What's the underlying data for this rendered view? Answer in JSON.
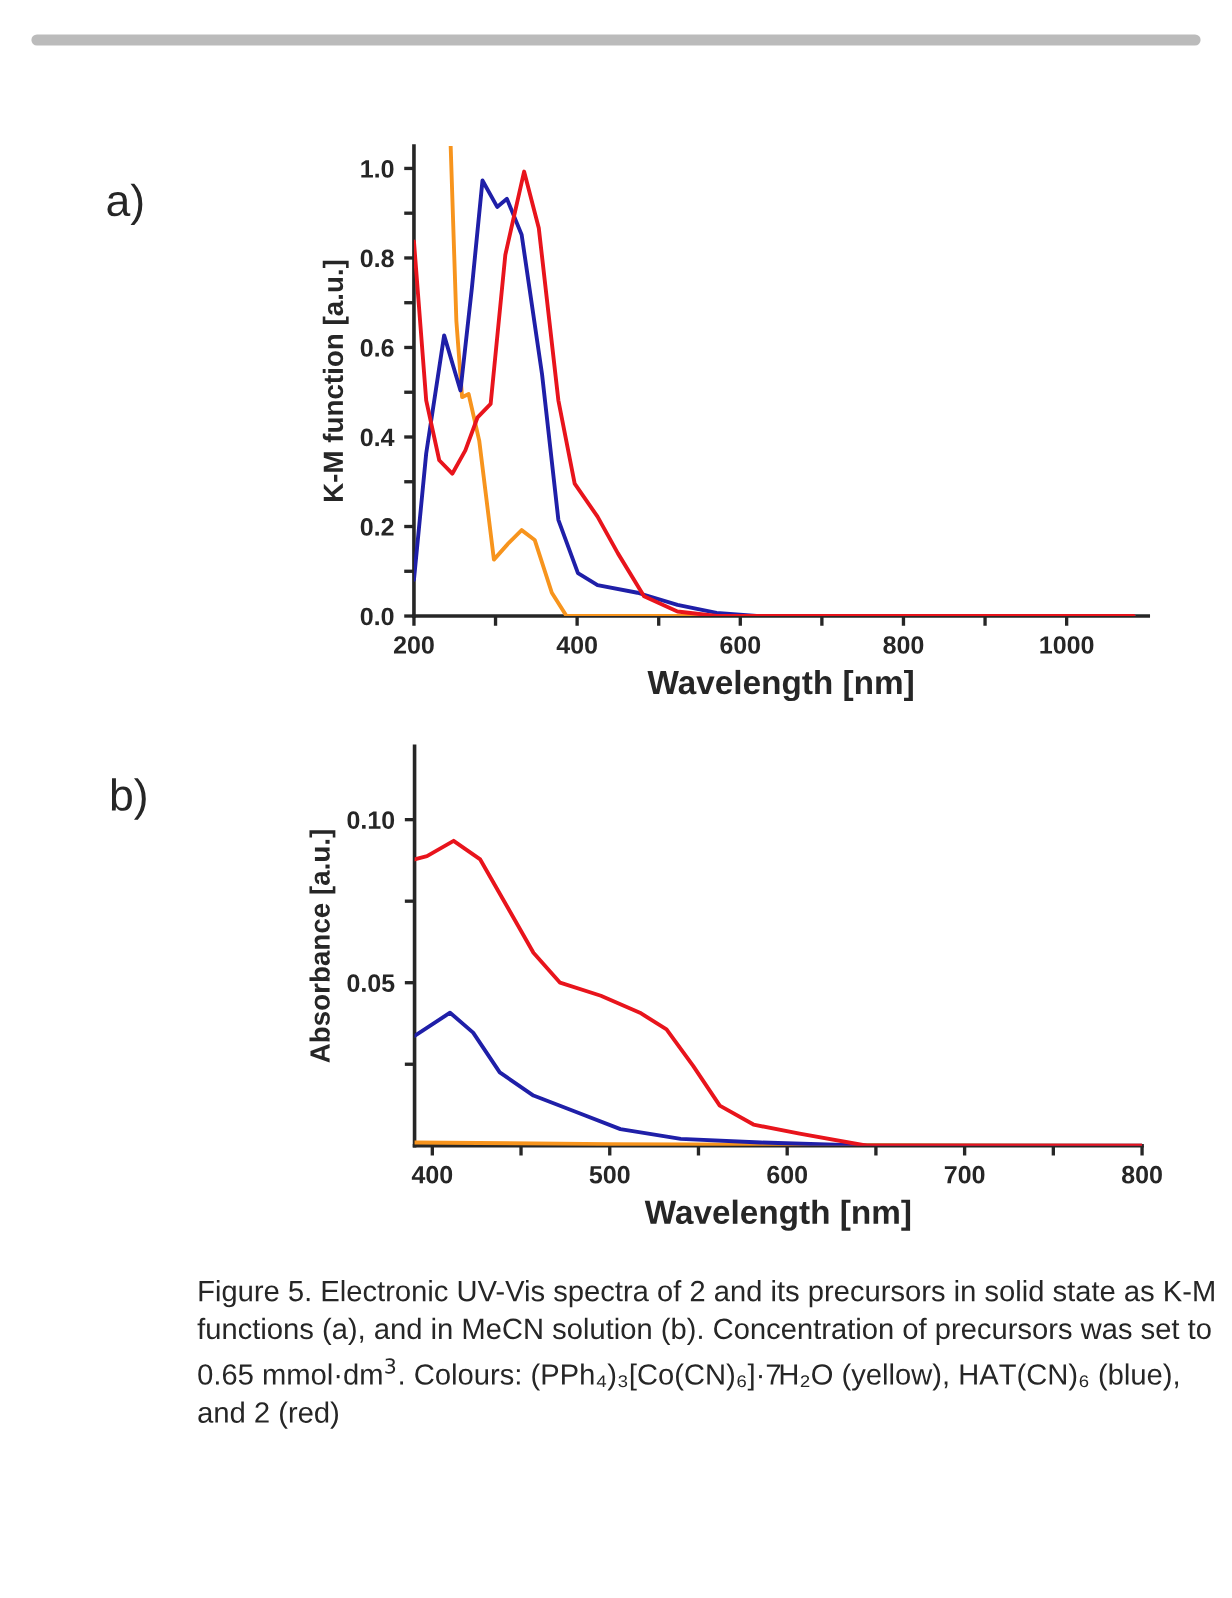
{
  "chart_data": [
    {
      "type": "line",
      "xlabel": "Wavelength [nm]",
      "ylabel": "K-M function [a.u.]",
      "annotations": [
        "a)"
      ],
      "xlim": [
        200,
        1100
      ],
      "ylim": [
        0,
        1.05
      ],
      "xticks": [
        200,
        {
          "value": 300,
          "label": null
        },
        400,
        {
          "value": 500,
          "label": null
        },
        600,
        {
          "value": 700,
          "label": null
        },
        800,
        {
          "value": 900,
          "label": null
        },
        1000
      ],
      "yticks": [
        {
          "value": 0,
          "label": "0.0"
        },
        {
          "value": 0.1,
          "label": null
        },
        {
          "value": 0.2,
          "label": "0.2"
        },
        {
          "value": 0.3,
          "label": null
        },
        {
          "value": 0.4,
          "label": "0.4"
        },
        {
          "value": 0.5,
          "label": null
        },
        {
          "value": 0.6,
          "label": "0.6"
        },
        {
          "value": 0.7,
          "label": null
        },
        {
          "value": 0.8,
          "label": "0.8"
        },
        {
          "value": 0.9,
          "label": null
        },
        {
          "value": 1.0,
          "label": "1.0"
        }
      ],
      "grid": false,
      "legend": false,
      "marker": "none",
      "line_style": "solid",
      "series": [
        {
          "color": "#f7941d",
          "x": [
            245,
            252,
            259,
            267,
            280,
            298,
            316,
            332,
            348,
            369,
            387,
            1082
          ],
          "values": [
            1.05,
            0.659,
            0.489,
            0.496,
            0.392,
            0.126,
            0.163,
            0.192,
            0.17,
            0.052,
            0,
            0
          ]
        },
        {
          "color": "#1f1fa8",
          "x": [
            200,
            215,
            237,
            257,
            271,
            284,
            302,
            314,
            332,
            357,
            377,
            401,
            425,
            474,
            523,
            571,
            620,
            1082
          ],
          "values": [
            0.081,
            0.363,
            0.627,
            0.504,
            0.733,
            0.973,
            0.914,
            0.932,
            0.852,
            0.54,
            0.215,
            0.096,
            0.069,
            0.052,
            0.025,
            0.007,
            0,
            0
          ]
        },
        {
          "color": "#e8141c",
          "x": [
            200,
            215,
            231,
            247,
            263,
            278,
            294,
            312,
            335,
            353,
            377,
            397,
            425,
            450,
            482,
            523,
            571,
            1082
          ],
          "values": [
            0.837,
            0.482,
            0.348,
            0.318,
            0.37,
            0.444,
            0.474,
            0.807,
            0.993,
            0.867,
            0.482,
            0.296,
            0.222,
            0.14,
            0.044,
            0.01,
            0,
            0
          ]
        }
      ]
    },
    {
      "type": "line",
      "xlabel": "Wavelength [nm]",
      "ylabel": "Absorbance [a.u.]",
      "annotations": [
        "b)",
        "Figure 5. Electronic UV-Vis spectra of 2 and its precursors in solid state as K-M functions (a), and in MeCN solution (b). Concentration of precursors was set to 0.65 mmol·dm$^{3}$. Colours: (PPh₄)₃[Co(CN)₆]·7H₂O (yellow), HAT(CN)₆ (blue), and 2 (red)"
      ],
      "xlim": [
        390,
        800
      ],
      "ylim": [
        0,
        0.1225
      ],
      "xticks": [
        400,
        {
          "value": 450,
          "label": null
        },
        500,
        {
          "value": 550,
          "label": null
        },
        600,
        {
          "value": 650,
          "label": null
        },
        700,
        {
          "value": 750,
          "label": null
        },
        800
      ],
      "yticks": [
        {
          "value": 0.025,
          "label": null
        },
        0.05,
        {
          "value": 0.075,
          "label": null
        },
        {
          "value": 0.1,
          "label": "0.10"
        }
      ],
      "grid": false,
      "legend": false,
      "marker": "none",
      "line_style": "solid",
      "series": [
        {
          "color": "#f7941d",
          "x": [
            390,
            500,
            800
          ],
          "values": [
            0.001,
            0.0005,
            0
          ]
        },
        {
          "color": "#1f1fa8",
          "x": [
            390,
            410,
            423,
            438,
            457,
            480,
            506,
            540,
            585,
            645,
            800
          ],
          "values": [
            0.0337,
            0.0408,
            0.0347,
            0.0225,
            0.0154,
            0.0106,
            0.0051,
            0.0021,
            0.001,
            0,
            0
          ]
        },
        {
          "color": "#e8141c",
          "x": [
            390,
            397,
            412,
            427,
            442,
            457,
            472,
            495,
            517,
            532,
            547,
            562,
            581,
            607,
            645,
            800
          ],
          "values": [
            0.0878,
            0.0888,
            0.0935,
            0.0878,
            0.0735,
            0.0592,
            0.05,
            0.046,
            0.0408,
            0.0357,
            0.0245,
            0.0123,
            0.0065,
            0.0037,
            0,
            0
          ]
        }
      ]
    }
  ]
}
